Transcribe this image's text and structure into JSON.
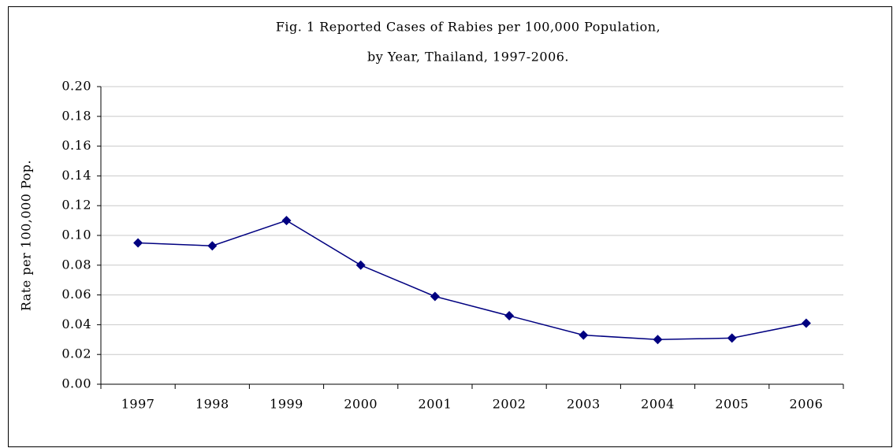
{
  "chart_data": {
    "type": "line",
    "title": [
      "Fig. 1 Reported Cases of Rabies per 100,000 Population,",
      "by Year, Thailand, 1997-2006."
    ],
    "y_label": "Rate per 100,000 Pop.",
    "categories": [
      "1997",
      "1998",
      "1999",
      "2000",
      "2001",
      "2002",
      "2003",
      "2004",
      "2005",
      "2006"
    ],
    "values": [
      0.095,
      0.093,
      0.11,
      0.08,
      0.059,
      0.046,
      0.033,
      0.03,
      0.031,
      0.041
    ],
    "color": "#000080",
    "ylim": [
      0,
      0.2
    ],
    "yticks": [
      {
        "value": 0,
        "label": "0.00"
      },
      0.02,
      0.04,
      0.06,
      0.08,
      {
        "value": 0.1,
        "label": "0.10"
      },
      0.12,
      0.14,
      0.16,
      0.18,
      {
        "value": 0.2,
        "label": "0.20"
      }
    ],
    "grid": true
  }
}
